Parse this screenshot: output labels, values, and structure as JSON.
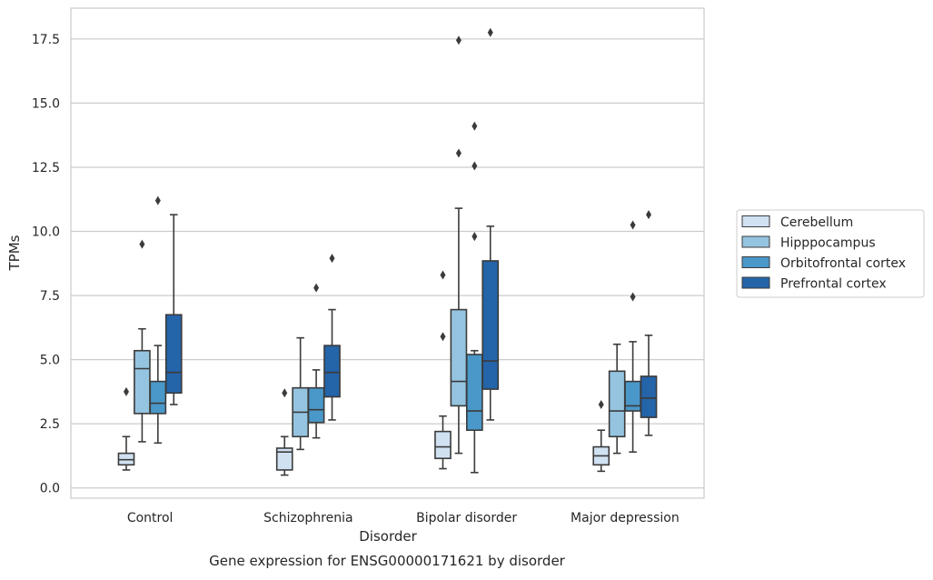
{
  "chart_data": {
    "type": "boxplot",
    "title": "Gene expression for ENSG00000171621 by disorder",
    "xlabel": "Disorder",
    "ylabel": "TPMs",
    "ylim": [
      -0.4,
      18.7
    ],
    "yticks": [
      0.0,
      2.5,
      5.0,
      7.5,
      10.0,
      12.5,
      15.0,
      17.5
    ],
    "ytick_labels": [
      "0.0",
      "2.5",
      "5.0",
      "7.5",
      "10.0",
      "12.5",
      "15.0",
      "17.5"
    ],
    "grid": "horizontal",
    "legend_position": "right",
    "categories": [
      "Control",
      "Schizophrenia",
      "Bipolar disorder",
      "Major depression"
    ],
    "series": [
      {
        "name": "Cerebellum",
        "color": "#d0e1f2",
        "boxes": [
          {
            "whislo": 0.7,
            "q1": 0.9,
            "med": 1.1,
            "q3": 1.35,
            "whishi": 2.0,
            "fliers": [
              3.75
            ]
          },
          {
            "whislo": 0.5,
            "q1": 0.7,
            "med": 1.4,
            "q3": 1.55,
            "whishi": 2.0,
            "fliers": [
              3.7
            ]
          },
          {
            "whislo": 0.75,
            "q1": 1.15,
            "med": 1.6,
            "q3": 2.2,
            "whishi": 2.8,
            "fliers": [
              5.9,
              8.3
            ]
          },
          {
            "whislo": 0.65,
            "q1": 0.9,
            "med": 1.25,
            "q3": 1.6,
            "whishi": 2.25,
            "fliers": [
              3.25
            ]
          }
        ]
      },
      {
        "name": "Hipppocampus",
        "color": "#94c4df",
        "boxes": [
          {
            "whislo": 1.8,
            "q1": 2.9,
            "med": 4.65,
            "q3": 5.35,
            "whishi": 6.2,
            "fliers": [
              9.5
            ]
          },
          {
            "whislo": 1.5,
            "q1": 2.0,
            "med": 2.95,
            "q3": 3.9,
            "whishi": 5.85,
            "fliers": []
          },
          {
            "whislo": 1.35,
            "q1": 3.2,
            "med": 4.15,
            "q3": 6.95,
            "whishi": 10.9,
            "fliers": [
              13.05,
              17.45
            ]
          },
          {
            "whislo": 1.35,
            "q1": 2.0,
            "med": 3.0,
            "q3": 4.55,
            "whishi": 5.6,
            "fliers": []
          }
        ]
      },
      {
        "name": "Orbitofrontal cortex",
        "color": "#4a98c9",
        "boxes": [
          {
            "whislo": 1.75,
            "q1": 2.9,
            "med": 3.3,
            "q3": 4.15,
            "whishi": 5.55,
            "fliers": [
              11.2
            ]
          },
          {
            "whislo": 1.95,
            "q1": 2.55,
            "med": 3.05,
            "q3": 3.9,
            "whishi": 4.6,
            "fliers": [
              7.8
            ]
          },
          {
            "whislo": 0.6,
            "q1": 2.25,
            "med": 3.0,
            "q3": 5.2,
            "whishi": 5.35,
            "fliers": [
              9.8,
              12.55,
              14.1
            ]
          },
          {
            "whislo": 1.4,
            "q1": 3.0,
            "med": 3.2,
            "q3": 4.15,
            "whishi": 5.7,
            "fliers": [
              7.45,
              10.25
            ]
          }
        ]
      },
      {
        "name": "Prefrontal cortex",
        "color": "#2464a8",
        "boxes": [
          {
            "whislo": 3.25,
            "q1": 3.7,
            "med": 4.5,
            "q3": 6.75,
            "whishi": 10.65,
            "fliers": []
          },
          {
            "whislo": 2.65,
            "q1": 3.55,
            "med": 4.5,
            "q3": 5.55,
            "whishi": 6.95,
            "fliers": [
              8.95
            ]
          },
          {
            "whislo": 2.65,
            "q1": 3.85,
            "med": 4.95,
            "q3": 8.85,
            "whishi": 10.2,
            "fliers": [
              17.75
            ]
          },
          {
            "whislo": 2.05,
            "q1": 2.75,
            "med": 3.5,
            "q3": 4.35,
            "whishi": 5.95,
            "fliers": [
              10.65
            ]
          }
        ]
      }
    ]
  }
}
